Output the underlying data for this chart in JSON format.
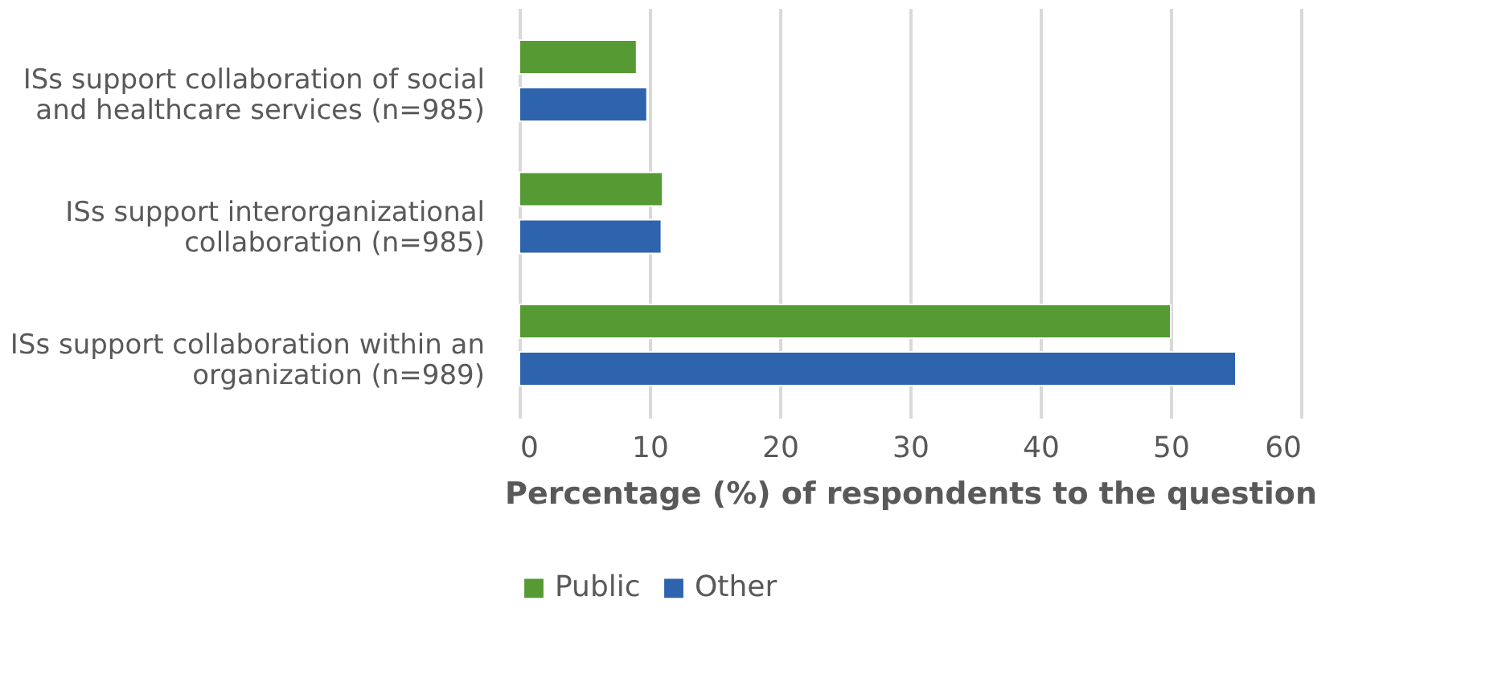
{
  "chart_data": {
    "type": "bar",
    "orientation": "horizontal",
    "categories": [
      "ISs support collaboration of social and healthcare services (n=985)",
      "ISs support interorganizational collaboration (n=985)",
      "ISs support collaboration within an organization (n=989)"
    ],
    "series": [
      {
        "name": "Public",
        "color": "#559a32",
        "values": [
          9,
          11,
          50
        ]
      },
      {
        "name": "Other",
        "color": "#2e63ad",
        "values": [
          9.8,
          10.9,
          55
        ]
      }
    ],
    "xlabel": "Percentage (%) of respondents to the question",
    "xlim": [
      0,
      60
    ],
    "xticks": [
      0,
      10,
      20,
      30,
      40,
      50,
      60
    ],
    "grid": "x",
    "legend": "bottom"
  }
}
